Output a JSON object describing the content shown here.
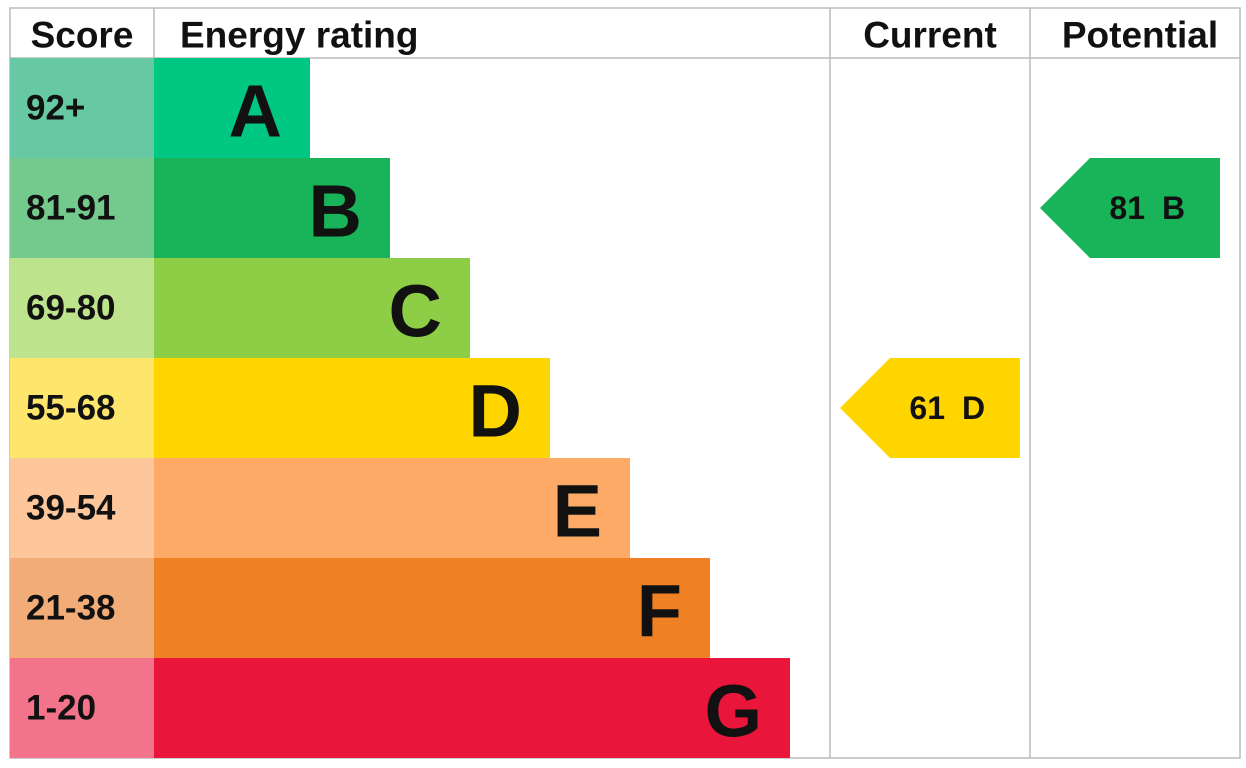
{
  "header": {
    "score": "Score",
    "rating": "Energy rating",
    "current": "Current",
    "potential": "Potential"
  },
  "bands": [
    {
      "score": "92+",
      "letter": "A",
      "color": "#00c781",
      "score_color": "#66c9a3"
    },
    {
      "score": "81-91",
      "letter": "B",
      "color": "#19b459",
      "score_color": "#74c98d"
    },
    {
      "score": "69-80",
      "letter": "C",
      "color": "#8dce46",
      "score_color": "#bde38c"
    },
    {
      "score": "55-68",
      "letter": "D",
      "color": "#ffd500",
      "score_color": "#fee56c"
    },
    {
      "score": "39-54",
      "letter": "E",
      "color": "#fcaa65",
      "score_color": "#fdc69b"
    },
    {
      "score": "21-38",
      "letter": "F",
      "color": "#ef8023",
      "score_color": "#f2ac78"
    },
    {
      "score": "1-20",
      "letter": "G",
      "color": "#e9153b",
      "score_color": "#f2738a"
    }
  ],
  "current": {
    "score": 61,
    "letter": "D"
  },
  "potential": {
    "score": 81,
    "letter": "B"
  }
}
